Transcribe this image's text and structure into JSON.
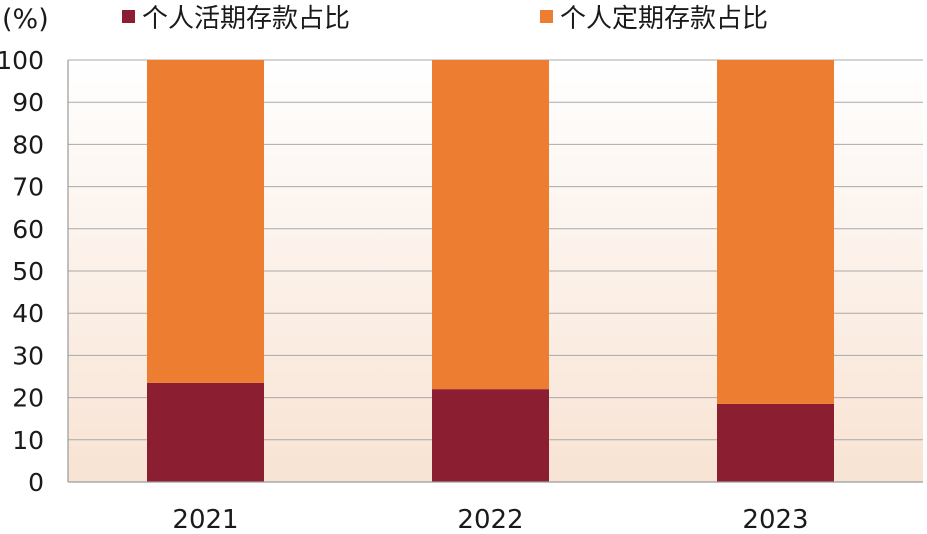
{
  "chart_data": {
    "type": "bar",
    "stacked": true,
    "y_unit_label": "(%)",
    "categories": [
      "2021",
      "2022",
      "2023"
    ],
    "series": [
      {
        "name": "个人活期存款占比",
        "color": "#8B1E31",
        "values": [
          23.5,
          22,
          18.5
        ]
      },
      {
        "name": "个人定期存款占比",
        "color": "#ED7D31",
        "values": [
          76.5,
          78,
          81.5
        ]
      }
    ],
    "ylim": [
      0,
      100
    ],
    "y_ticks": [
      0,
      10,
      20,
      30,
      40,
      50,
      60,
      70,
      80,
      90,
      100
    ],
    "grid": true,
    "legend_position": "top",
    "background_gradient": [
      "#ffffff",
      "#F8E3D3"
    ]
  }
}
